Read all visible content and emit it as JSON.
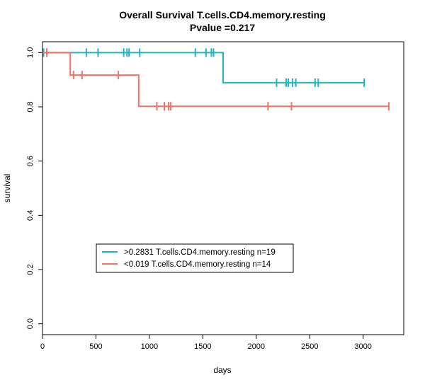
{
  "chart_data": {
    "type": "line",
    "title": "Overall Survival T.cells.CD4.memory.resting",
    "subtitle": "Pvalue =0.217",
    "xlabel": "days",
    "ylabel": "survival",
    "xlim": [
      0,
      3380
    ],
    "ylim": [
      -0.04,
      1.04
    ],
    "x_ticks": [
      0,
      500,
      1000,
      1500,
      2000,
      2500,
      3000
    ],
    "y_ticks": [
      0.0,
      0.2,
      0.4,
      0.6,
      0.8,
      1.0
    ],
    "x_tick_labels": [
      "0",
      "500",
      "1000",
      "1500",
      "2000",
      "2500",
      "3000"
    ],
    "y_tick_labels": [
      "0.0",
      "0.2",
      "0.4",
      "0.6",
      "0.8",
      "1.0"
    ],
    "grid": false,
    "legend_position": "bottom-left",
    "series": [
      {
        "name": ">0.2831 T.cells.CD4.memory.resting n=19",
        "color": "#1CB5C1",
        "x": [
          0,
          1690,
          3010
        ],
        "y": [
          1.0,
          0.889,
          0.889
        ],
        "censor_x": [
          10,
          410,
          520,
          760,
          790,
          810,
          910,
          1430,
          1530,
          1580,
          1600,
          2190,
          2280,
          2300,
          2340,
          2370,
          2550,
          2580,
          3010
        ],
        "censor_y": [
          1.0,
          1.0,
          1.0,
          1.0,
          1.0,
          1.0,
          1.0,
          1.0,
          1.0,
          1.0,
          1.0,
          0.889,
          0.889,
          0.889,
          0.889,
          0.889,
          0.889,
          0.889,
          0.889
        ]
      },
      {
        "name": "<0.019 T.cells.CD4.memory.resting n=14",
        "color": "#F07167",
        "x": [
          0,
          260,
          900,
          3240
        ],
        "y": [
          1.0,
          0.917,
          0.802,
          0.802
        ],
        "censor_x": [
          40,
          290,
          370,
          710,
          1070,
          1140,
          1180,
          1200,
          2110,
          2330,
          3240
        ],
        "censor_y": [
          1.0,
          0.917,
          0.917,
          0.917,
          0.802,
          0.802,
          0.802,
          0.802,
          0.802,
          0.802,
          0.802
        ]
      }
    ]
  }
}
